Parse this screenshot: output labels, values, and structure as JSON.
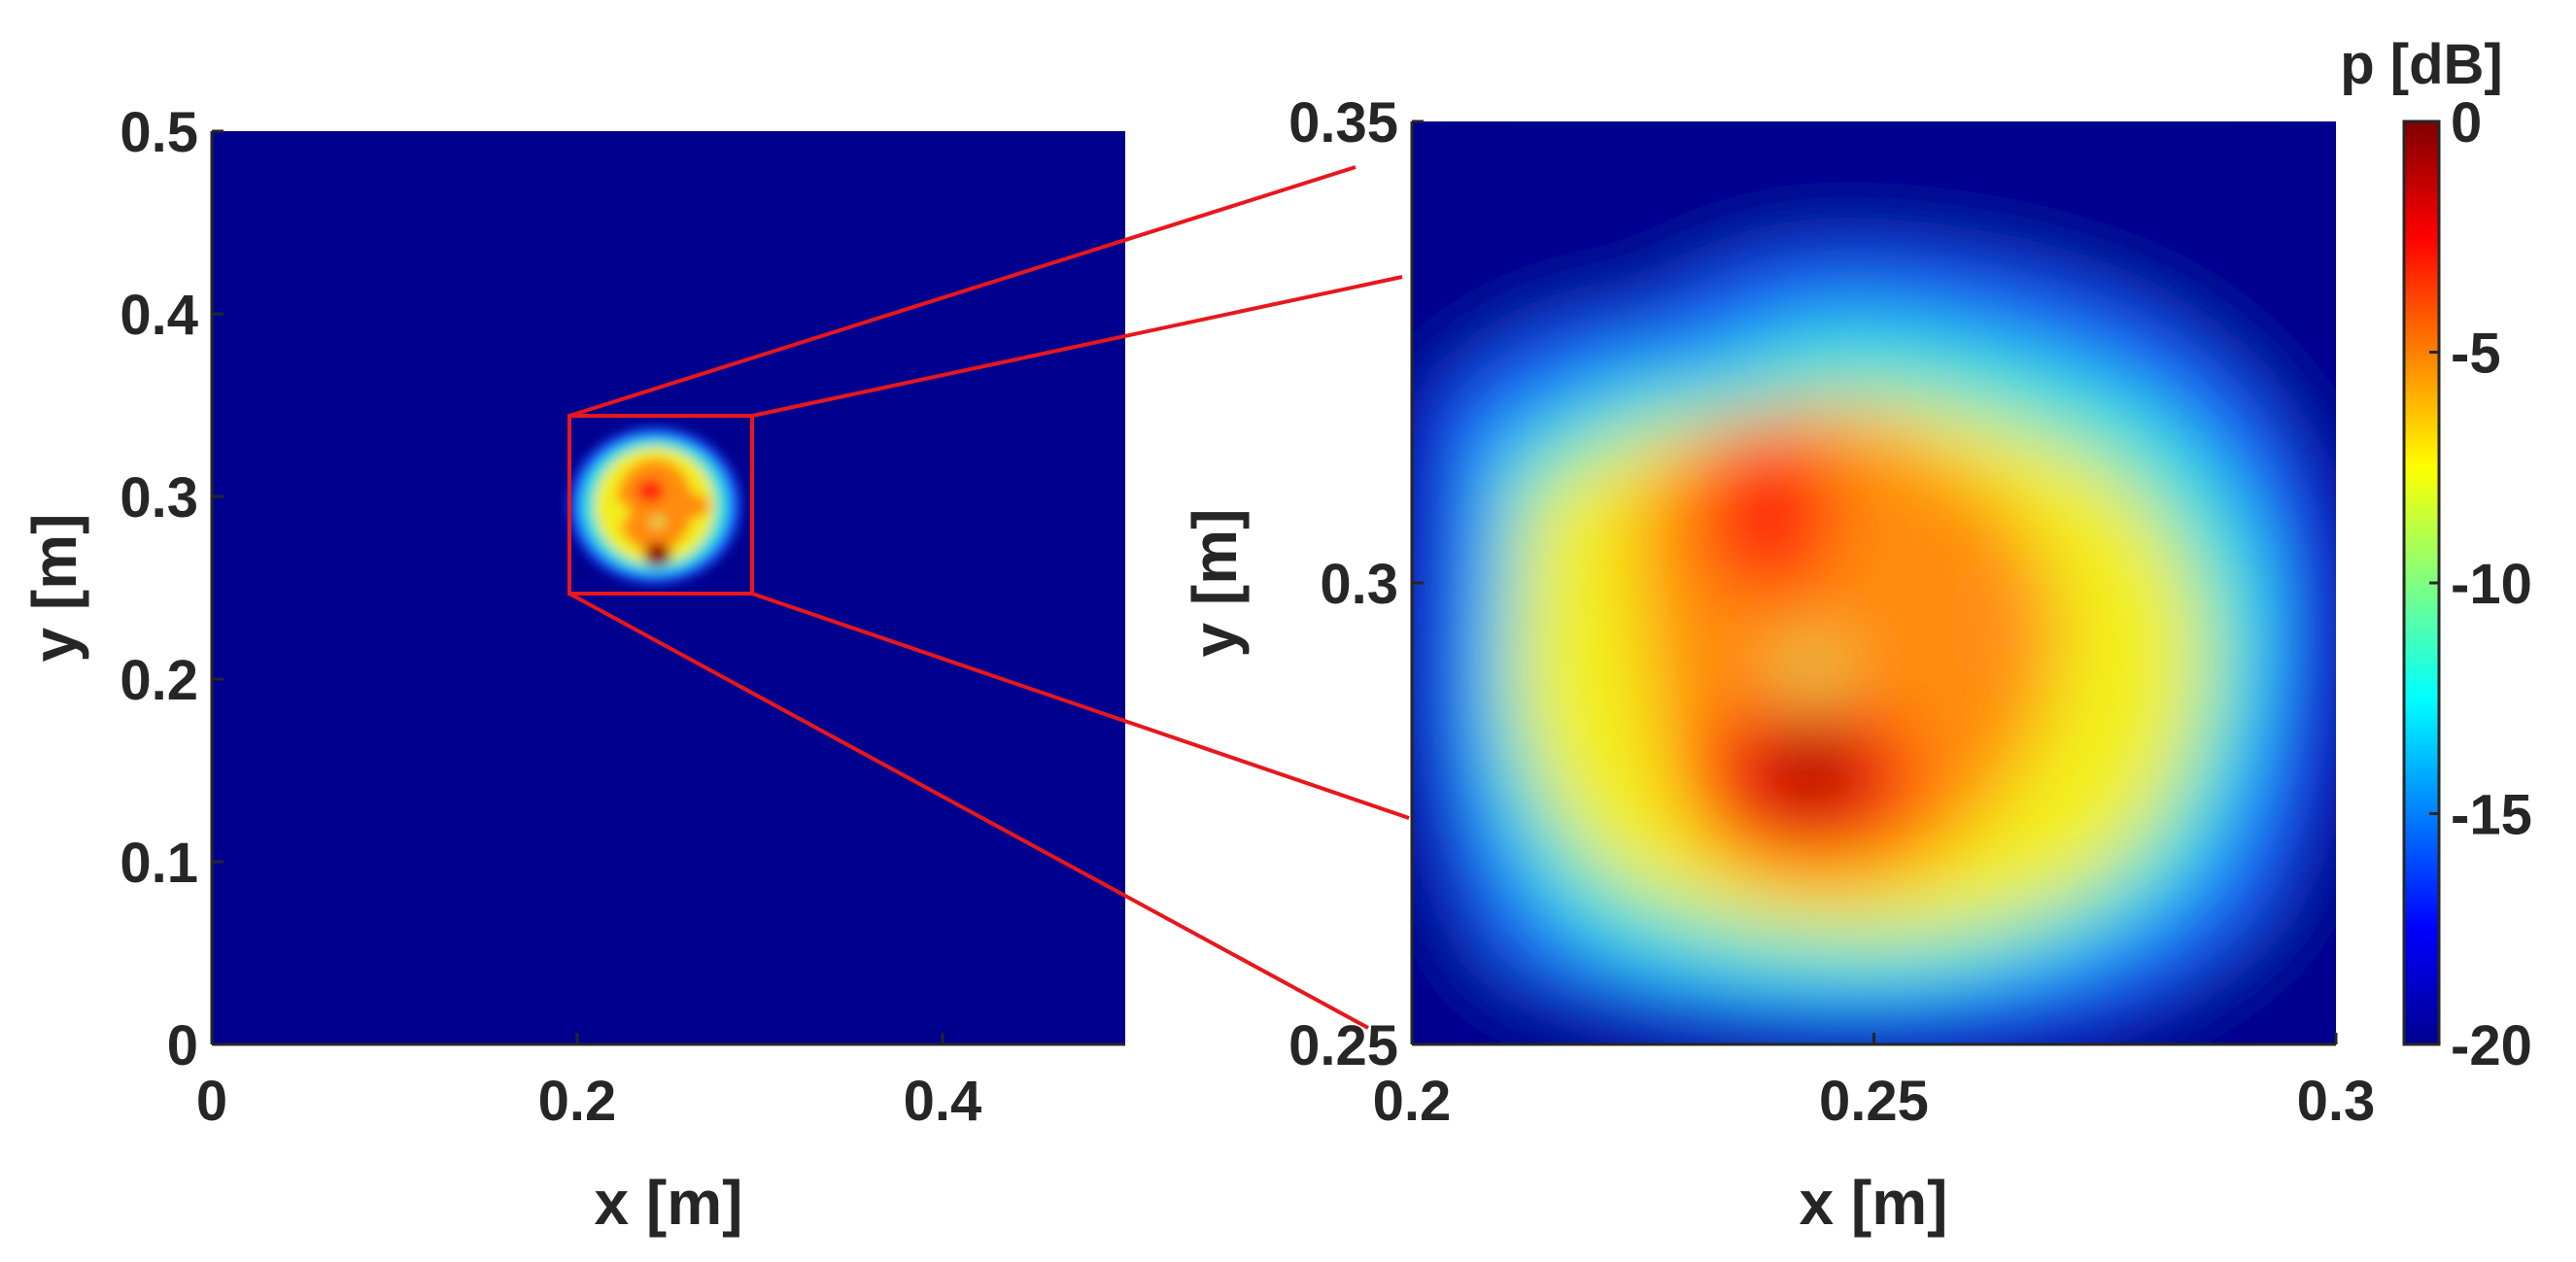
{
  "chart_data": [
    {
      "type": "heatmap",
      "title": "",
      "xlabel": "x [m]",
      "ylabel": "y [m]",
      "xlim": [
        0,
        0.5
      ],
      "ylim": [
        0,
        0.5
      ],
      "xticks": [
        "0",
        "0.2",
        "0.4"
      ],
      "xtick_values": [
        0,
        0.2,
        0.4
      ],
      "yticks": [
        "0",
        "0.1",
        "0.2",
        "0.3",
        "0.4",
        "0.5"
      ],
      "ytick_values": [
        0,
        0.1,
        0.2,
        0.3,
        0.4,
        0.5
      ],
      "zoom_box": {
        "x": [
          0.2,
          0.3
        ],
        "y": [
          0.25,
          0.35
        ]
      },
      "grid": false
    },
    {
      "type": "heatmap",
      "title": "",
      "xlabel": "x [m]",
      "ylabel": "y [m]",
      "xlim": [
        0.2,
        0.3
      ],
      "ylim": [
        0.25,
        0.35
      ],
      "xticks": [
        "0.2",
        "0.25",
        "0.3"
      ],
      "xtick_values": [
        0.2,
        0.25,
        0.3
      ],
      "yticks": [
        "0.25",
        "0.3",
        "0.35"
      ],
      "ytick_values": [
        0.25,
        0.3,
        0.35
      ],
      "grid": false,
      "hotspots": [
        {
          "x": 0.244,
          "y": 0.268,
          "level_db": 0
        },
        {
          "x": 0.24,
          "y": 0.303,
          "level_db": -2
        },
        {
          "x": 0.265,
          "y": 0.295,
          "level_db": -6
        },
        {
          "x": 0.221,
          "y": 0.291,
          "level_db": -9
        }
      ]
    }
  ],
  "colorbar": {
    "title": "p [dB]",
    "range": [
      -20,
      0
    ],
    "ticks": [
      "0",
      "-5",
      "-10",
      "-15",
      "-20"
    ],
    "tick_values": [
      0,
      -5,
      -10,
      -15,
      -20
    ],
    "colormap": "jet"
  },
  "colors": {
    "background_low": "#00008f",
    "zoom_lines": "#e8171b",
    "text": "#262626"
  }
}
